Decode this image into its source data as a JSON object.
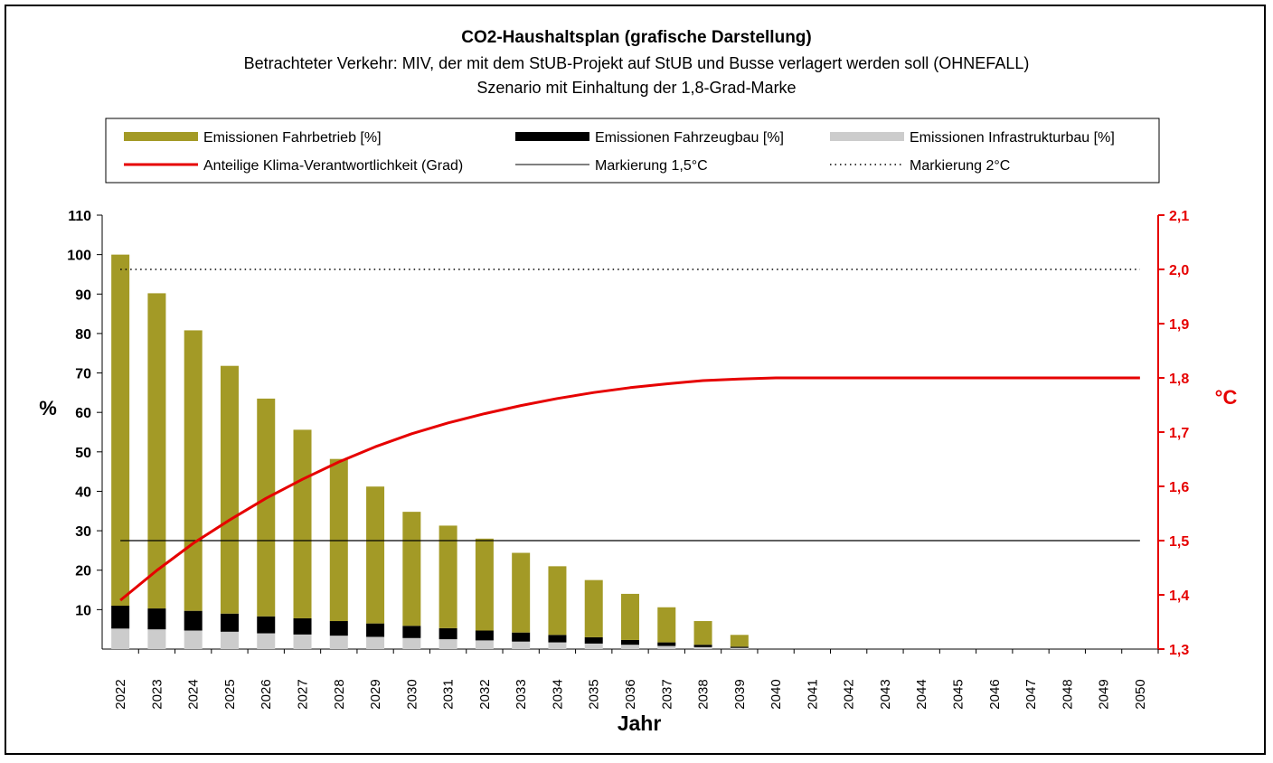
{
  "chart_data": {
    "type": "bar",
    "title": "CO2-Haushaltsplan (grafische Darstellung)",
    "subtitle_lines": [
      "Betrachteter Verkehr: MIV, der mit dem StUB-Projekt auf StUB und Busse verlagert werden soll (OHNEFALL)",
      "Szenario mit Einhaltung der 1,8-Grad-Marke"
    ],
    "xlabel": "Jahr",
    "ylabel": "%",
    "y2label": "°C",
    "ylim": [
      0,
      110
    ],
    "yticks": [
      10,
      20,
      30,
      40,
      50,
      60,
      70,
      80,
      90,
      100,
      110
    ],
    "y2lim": [
      1.3,
      2.1
    ],
    "y2ticks": [
      "1,3",
      "1,4",
      "1,5",
      "1,6",
      "1,7",
      "1,8",
      "1,9",
      "2,0",
      "2,1"
    ],
    "categories": [
      "2022",
      "2023",
      "2024",
      "2025",
      "2026",
      "2027",
      "2028",
      "2029",
      "2030",
      "2031",
      "2032",
      "2033",
      "2034",
      "2035",
      "2036",
      "2037",
      "2038",
      "2039",
      "2040",
      "2041",
      "2042",
      "2043",
      "2044",
      "2045",
      "2046",
      "2047",
      "2048",
      "2049",
      "2050"
    ],
    "series": [
      {
        "name": "Emissionen Infrastrukturbau [%]",
        "kind": "bar",
        "axis": "left",
        "color": "#cccccc",
        "values": [
          5.2,
          5.0,
          4.7,
          4.4,
          4.0,
          3.7,
          3.4,
          3.1,
          2.8,
          2.5,
          2.2,
          1.9,
          1.7,
          1.4,
          1.1,
          0.8,
          0.5,
          0.3,
          0,
          0,
          0,
          0,
          0,
          0,
          0,
          0,
          0,
          0,
          0
        ]
      },
      {
        "name": "Emissionen Fahrzeugbau [%]",
        "kind": "bar",
        "axis": "left",
        "color": "#000000",
        "values": [
          5.8,
          5.3,
          5.0,
          4.6,
          4.3,
          4.1,
          3.7,
          3.4,
          3.1,
          2.8,
          2.5,
          2.3,
          1.9,
          1.6,
          1.2,
          0.9,
          0.6,
          0.3,
          0,
          0,
          0,
          0,
          0,
          0,
          0,
          0,
          0,
          0,
          0
        ]
      },
      {
        "name": "Emissionen Fahrbetrieb [%]",
        "kind": "bar",
        "axis": "left",
        "color": "#a39a26",
        "values": [
          89.0,
          79.9,
          71.1,
          62.8,
          55.2,
          47.8,
          41.1,
          34.7,
          28.9,
          26.0,
          23.3,
          20.2,
          17.4,
          14.5,
          11.7,
          8.9,
          6.0,
          3.0,
          0,
          0,
          0,
          0,
          0,
          0,
          0,
          0,
          0,
          0,
          0
        ]
      },
      {
        "name": "Anteilige Klima-Verantwortlichkeit (Grad)",
        "kind": "line",
        "axis": "right",
        "color": "#e60000",
        "values": [
          1.39,
          1.445,
          1.495,
          1.538,
          1.578,
          1.613,
          1.645,
          1.673,
          1.697,
          1.717,
          1.734,
          1.749,
          1.762,
          1.773,
          1.782,
          1.789,
          1.795,
          1.798,
          1.8,
          1.8,
          1.8,
          1.8,
          1.8,
          1.8,
          1.8,
          1.8,
          1.8,
          1.8,
          1.8
        ]
      },
      {
        "name": "Markierung 1,5°C",
        "kind": "hline",
        "axis": "right",
        "value": 1.5,
        "color": "#000000"
      },
      {
        "name": "Markierung 2°C",
        "kind": "hline-dotted",
        "axis": "right",
        "value": 2.0,
        "color": "#000000"
      }
    ],
    "legend": {
      "position": "top",
      "entries": [
        {
          "label": "Emissionen Fahrbetrieb [%]",
          "style": "bar",
          "color": "#a39a26"
        },
        {
          "label": "Emissionen Fahrzeugbau [%]",
          "style": "bar",
          "color": "#000000"
        },
        {
          "label": "Emissionen Infrastrukturbau [%]",
          "style": "bar",
          "color": "#cccccc"
        },
        {
          "label": "Anteilige Klima-Verantwortlichkeit (Grad)",
          "style": "thick-line",
          "color": "#e60000"
        },
        {
          "label": "Markierung 1,5°C",
          "style": "line",
          "color": "#000000"
        },
        {
          "label": "Markierung 2°C",
          "style": "dotted",
          "color": "#000000"
        }
      ]
    }
  }
}
